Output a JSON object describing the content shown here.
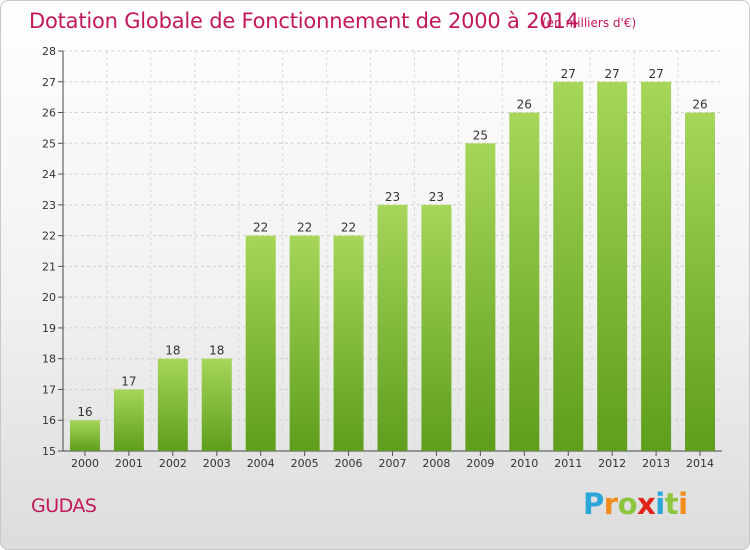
{
  "page": {
    "title": "Dotation Globale de Fonctionnement de 2000 à 2014",
    "unit": "(en milliers d'€)",
    "commune": "GUDAS",
    "logo_text": "Proxiti"
  },
  "colors": {
    "accent": "#c2185b",
    "bar_light": "#a6d65a",
    "bar_dark": "#5e9e1c"
  },
  "chart_data": {
    "type": "bar",
    "title": "Dotation Globale de Fonctionnement de 2000 à 2014",
    "subtitle": "(en milliers d'€)",
    "xlabel": "",
    "ylabel": "",
    "categories": [
      "2000",
      "2001",
      "2002",
      "2003",
      "2004",
      "2005",
      "2006",
      "2007",
      "2008",
      "2009",
      "2010",
      "2011",
      "2012",
      "2013",
      "2014"
    ],
    "values": [
      16,
      17,
      18,
      18,
      22,
      22,
      22,
      23,
      23,
      25,
      26,
      27,
      27,
      27,
      26
    ],
    "ylim": [
      15,
      28
    ],
    "yticks": [
      15,
      16,
      17,
      18,
      19,
      20,
      21,
      22,
      23,
      24,
      25,
      26,
      27,
      28
    ],
    "grid": true
  }
}
